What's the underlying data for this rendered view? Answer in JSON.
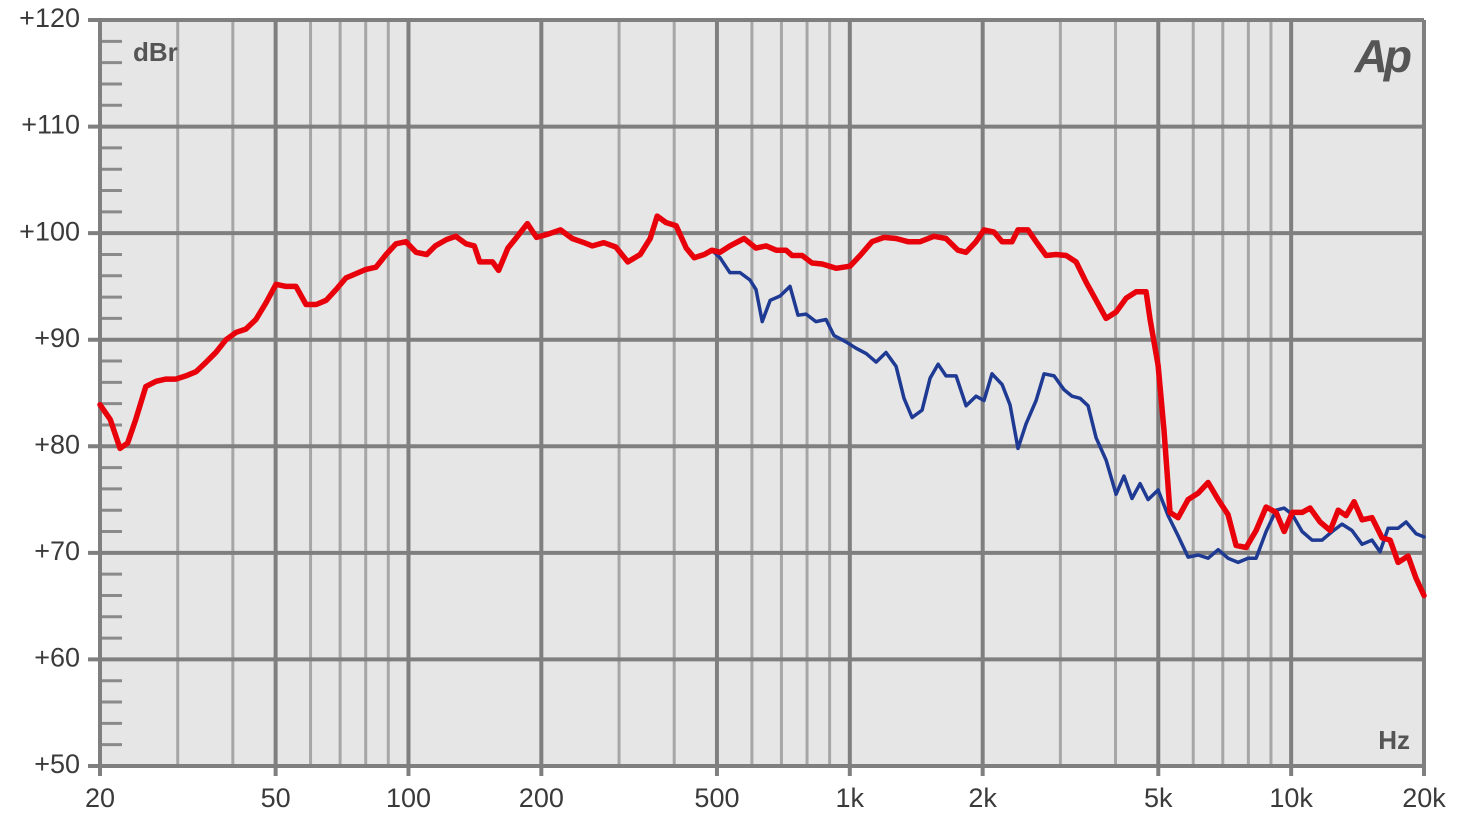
{
  "chart_data": {
    "type": "line",
    "xscale": "log",
    "ylabel": "dBr",
    "xlabel": "Hz",
    "logo": "Ap",
    "grid": true,
    "xlim": [
      20,
      20000
    ],
    "ylim": [
      50,
      120
    ],
    "xticks": [
      20,
      50,
      100,
      200,
      500,
      {
        "value": 1000,
        "label": "1k"
      },
      {
        "value": 2000,
        "label": "2k"
      },
      {
        "value": 5000,
        "label": "5k"
      },
      {
        "value": 10000,
        "label": "10k"
      },
      {
        "value": 20000,
        "label": "20k"
      }
    ],
    "xminorticks": [
      30,
      40,
      60,
      70,
      80,
      90,
      300,
      400,
      600,
      700,
      800,
      900,
      3000,
      4000,
      6000,
      7000,
      8000,
      9000
    ],
    "yticks": [
      {
        "value": 50,
        "label": "+50"
      },
      {
        "value": 60,
        "label": "+60"
      },
      {
        "value": 70,
        "label": "+70"
      },
      {
        "value": 80,
        "label": "+80"
      },
      {
        "value": 90,
        "label": "+90"
      },
      {
        "value": 100,
        "label": "+100"
      },
      {
        "value": 110,
        "label": "+110"
      },
      {
        "value": 120,
        "label": "+120"
      }
    ],
    "yminorticks": [
      52,
      54,
      56,
      58,
      62,
      64,
      66,
      68,
      72,
      74,
      76,
      78,
      82,
      84,
      86,
      88,
      92,
      94,
      96,
      98,
      102,
      104,
      106,
      108,
      112,
      114,
      116,
      118
    ],
    "series": [
      {
        "color": "#1f3a93",
        "x": [
          487,
          508,
          535,
          564,
          594,
          613,
          633,
          660,
          695,
          732,
          763,
          796,
          838,
          883,
          921,
          980,
          1033,
          1089,
          1147,
          1208,
          1273,
          1327,
          1384,
          1458,
          1520,
          1585,
          1652,
          1741,
          1834,
          1932,
          2014,
          2100,
          2213,
          2307,
          2405,
          2508,
          2643,
          2755,
          2903,
          3059,
          3189,
          3325,
          3467,
          3614,
          3809,
          4013,
          4181,
          4360,
          4548,
          4740,
          4994,
          5263,
          5543,
          5841,
          6155,
          6484,
          6833,
          7195,
          7582,
          7990,
          8331,
          8777,
          9244,
          9642,
          10060,
          10590,
          11150,
          11750,
          12390,
          13040,
          13740,
          14480,
          15250,
          15900,
          16580,
          17470,
          18220,
          19190,
          20000
        ],
        "values": [
          98.4,
          97.7,
          96.3,
          96.3,
          95.6,
          94.7,
          91.7,
          93.7,
          94.1,
          95.0,
          92.3,
          92.4,
          91.7,
          91.9,
          90.4,
          89.8,
          89.2,
          88.7,
          87.9,
          88.8,
          87.5,
          84.5,
          82.7,
          83.4,
          86.4,
          87.7,
          86.6,
          86.6,
          83.8,
          84.7,
          84.3,
          86.8,
          85.8,
          83.9,
          79.8,
          82.1,
          84.3,
          86.8,
          86.6,
          85.3,
          84.7,
          84.5,
          83.8,
          80.8,
          78.7,
          75.5,
          77.2,
          75.1,
          76.5,
          75.0,
          75.9,
          73.5,
          71.6,
          69.6,
          69.8,
          69.5,
          70.3,
          69.5,
          69.1,
          69.5,
          69.5,
          72.0,
          74.0,
          74.2,
          73.6,
          72.0,
          71.2,
          71.2,
          72.0,
          72.7,
          72.1,
          70.8,
          71.2,
          70.1,
          72.3,
          72.3,
          72.9,
          71.8,
          71.5
        ]
      },
      {
        "color": "#e8000b",
        "x": [
          20,
          21.1,
          22.2,
          23.1,
          24.1,
          25.4,
          26.8,
          28.2,
          29.7,
          31.3,
          33.0,
          34.8,
          36.6,
          38.6,
          40.7,
          42.8,
          45.1,
          47.6,
          50.1,
          52.8,
          55.6,
          58.6,
          61.8,
          65.1,
          68.5,
          72.2,
          76.1,
          80.1,
          84.4,
          89.0,
          93.7,
          98.7,
          104,
          110,
          115,
          122,
          128,
          135,
          141,
          145,
          155,
          160,
          168,
          175,
          186,
          195,
          207,
          221,
          235,
          250,
          261,
          277,
          295,
          314,
          335,
          353,
          366,
          383,
          404,
          426,
          444,
          468,
          487,
          508,
          535,
          576,
          613,
          646,
          681,
          717,
          740,
          780,
          821,
          866,
          931,
          1001,
          1055,
          1123,
          1196,
          1273,
          1355,
          1443,
          1551,
          1652,
          1758,
          1834,
          1932,
          2014,
          2122,
          2213,
          2331,
          2405,
          2534,
          2643,
          2784,
          2934,
          3092,
          3256,
          3431,
          3614,
          3809,
          4013,
          4227,
          4454,
          4691,
          4790,
          4994,
          5152,
          5316,
          5543,
          5841,
          6155,
          6484,
          6833,
          7195,
          7504,
          7906,
          8331,
          8777,
          9244,
          9642,
          10060,
          10590,
          11040,
          11630,
          12260,
          12780,
          13320,
          13890,
          14480,
          15250,
          16070,
          16760,
          17470,
          18410,
          19190,
          20000
        ],
        "values": [
          83.9,
          82.5,
          79.8,
          80.3,
          82.5,
          85.6,
          86.1,
          86.3,
          86.3,
          86.6,
          87.0,
          87.9,
          88.8,
          90.0,
          90.7,
          91.0,
          91.9,
          93.5,
          95.2,
          95.0,
          95.0,
          93.3,
          93.3,
          93.7,
          94.7,
          95.8,
          96.2,
          96.6,
          96.8,
          98.0,
          99.0,
          99.2,
          98.2,
          98.0,
          98.8,
          99.4,
          99.7,
          99.0,
          98.8,
          97.3,
          97.3,
          96.5,
          98.6,
          99.5,
          100.9,
          99.6,
          99.9,
          100.3,
          99.5,
          99.1,
          98.8,
          99.1,
          98.7,
          97.3,
          98.0,
          99.5,
          101.6,
          101.0,
          100.7,
          98.6,
          97.7,
          98.0,
          98.4,
          98.2,
          98.8,
          99.5,
          98.6,
          98.8,
          98.4,
          98.4,
          97.9,
          97.9,
          97.2,
          97.1,
          96.7,
          96.9,
          97.9,
          99.2,
          99.6,
          99.5,
          99.2,
          99.2,
          99.7,
          99.5,
          98.4,
          98.2,
          99.2,
          100.3,
          100.1,
          99.2,
          99.2,
          100.3,
          100.3,
          99.2,
          97.9,
          98.0,
          97.9,
          97.3,
          95.4,
          93.7,
          92.0,
          92.6,
          93.9,
          94.5,
          94.5,
          91.9,
          87.6,
          81.5,
          73.8,
          73.3,
          75.0,
          75.6,
          76.6,
          75.0,
          73.6,
          70.7,
          70.5,
          72.1,
          74.3,
          73.8,
          72.0,
          73.8,
          73.8,
          74.2,
          72.9,
          72.1,
          74.0,
          73.5,
          74.8,
          73.1,
          73.3,
          71.4,
          71.2,
          69.1,
          69.7,
          67.6,
          66.0
        ]
      }
    ]
  }
}
